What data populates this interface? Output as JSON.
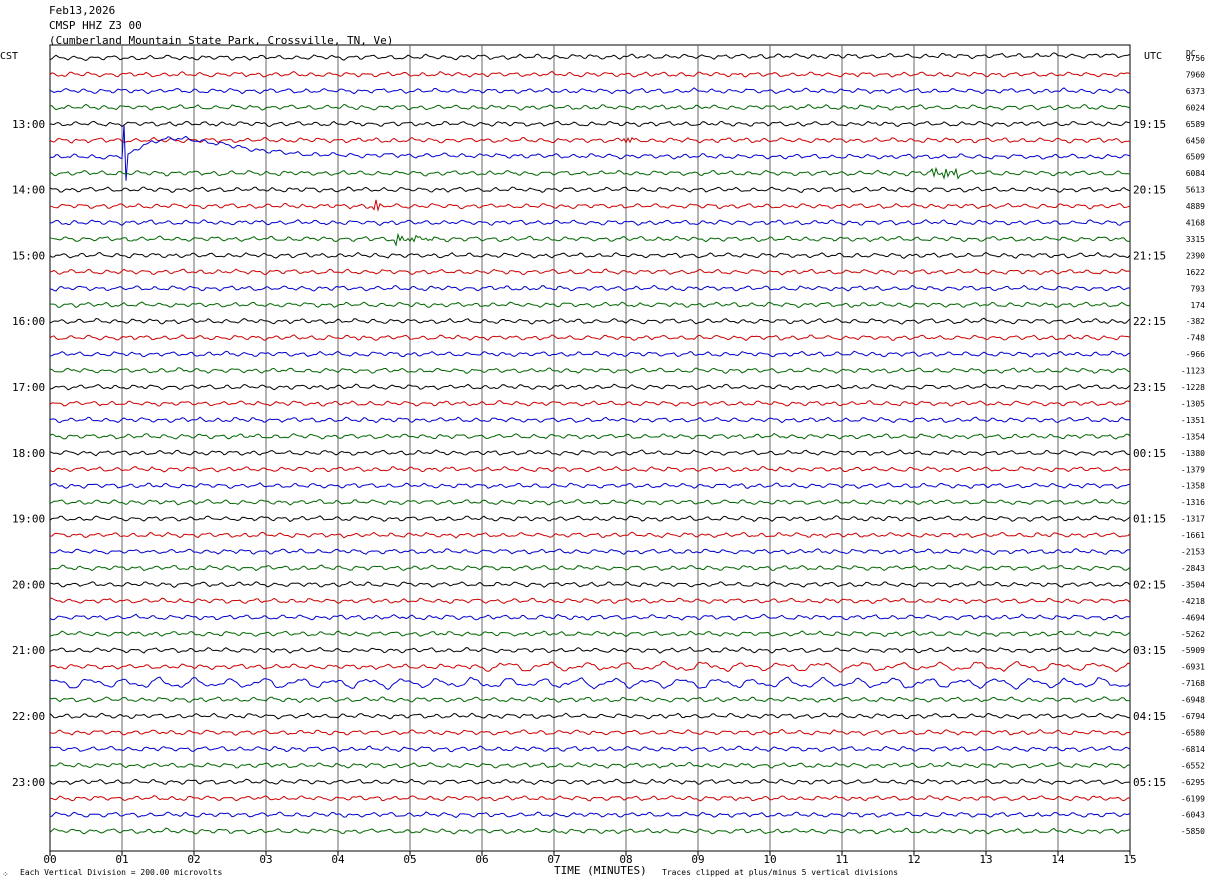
{
  "header": {
    "date": "Feb13,2026",
    "station": "CMSP HHZ Z3 00",
    "location": "(Cumberland Mountain State Park, Crossville, TN, Ve)"
  },
  "left_zone": "CST",
  "right_zone": "UTC",
  "dc_label": "DC",
  "footer": {
    "division_note": "Each Vertical Division =  200.00 microvolts",
    "xaxis_title": "TIME (MINUTES)",
    "clip_note": "Traces clipped at plus/minus 5 vertical divisions",
    "corner_mark": "⁘"
  },
  "chart_data": {
    "type": "line",
    "x_ticks": [
      "00",
      "01",
      "02",
      "03",
      "04",
      "05",
      "06",
      "07",
      "08",
      "09",
      "10",
      "11",
      "12",
      "13",
      "14",
      "15"
    ],
    "xlim": [
      0,
      15
    ],
    "trace_colors": [
      "#000000",
      "#cc0000",
      "#0000cc",
      "#006600"
    ],
    "left_hour_labels": [
      "13:00",
      "14:00",
      "15:00",
      "16:00",
      "17:00",
      "18:00",
      "19:00",
      "20:00",
      "21:00",
      "22:00",
      "23:00"
    ],
    "right_hour_labels": [
      "19:15",
      "20:15",
      "21:15",
      "22:15",
      "23:15",
      "00:15",
      "01:15",
      "02:15",
      "03:15",
      "04:15",
      "05:15"
    ],
    "dc_offsets": [
      "9756",
      "7960",
      "6373",
      "6024",
      "6589",
      "6450",
      "6509",
      "6084",
      "5613",
      "4889",
      "4168",
      "3315",
      "2390",
      "1622",
      "793",
      "174",
      "-382",
      "-748",
      "-966",
      "-1123",
      "-1228",
      "-1305",
      "-1351",
      "-1354",
      "-1380",
      "-1379",
      "-1358",
      "-1316",
      "-1317",
      "-1661",
      "-2153",
      "-2843",
      "-3504",
      "-4218",
      "-4694",
      "-5262",
      "-5909",
      "-6931",
      "-7168",
      "-6948",
      "-6794",
      "-6580",
      "-6814",
      "-6552",
      "-6295",
      "-6199",
      "-6043",
      "-5850"
    ]
  }
}
